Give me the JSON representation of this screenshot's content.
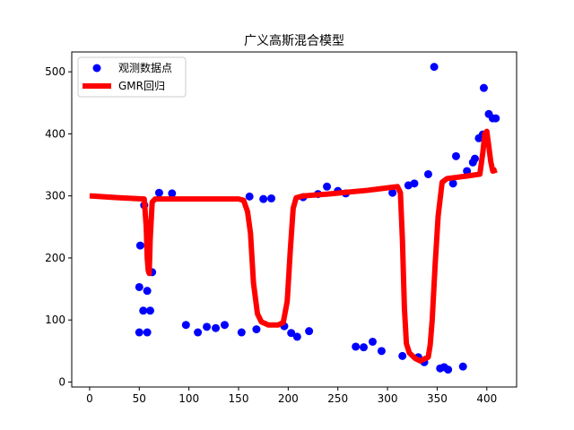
{
  "chart_data": {
    "type": "scatter",
    "title": "广义高斯混合模型",
    "xlabel": "",
    "ylabel": "",
    "xlim": [
      -18,
      430
    ],
    "ylim": [
      -8,
      532
    ],
    "xticks": [
      0,
      50,
      100,
      150,
      200,
      250,
      300,
      350,
      400
    ],
    "yticks": [
      0,
      100,
      200,
      300,
      400,
      500
    ],
    "grid": false,
    "legend_position": "upper-left",
    "colors": {
      "scatter": "#0000ff",
      "regression": "#ff0000"
    },
    "series": [
      {
        "name": "观测数据点",
        "kind": "scatter",
        "points": [
          [
            50,
            80
          ],
          [
            50,
            153
          ],
          [
            51,
            220
          ],
          [
            54,
            115
          ],
          [
            55,
            285
          ],
          [
            58,
            80
          ],
          [
            58,
            147
          ],
          [
            59,
            218
          ],
          [
            61,
            115
          ],
          [
            63,
            177
          ],
          [
            70,
            305
          ],
          [
            83,
            304
          ],
          [
            97,
            92
          ],
          [
            109,
            80
          ],
          [
            118,
            89
          ],
          [
            127,
            87
          ],
          [
            136,
            92
          ],
          [
            153,
            80
          ],
          [
            161,
            299
          ],
          [
            168,
            85
          ],
          [
            175,
            295
          ],
          [
            183,
            296
          ],
          [
            196,
            90
          ],
          [
            203,
            79
          ],
          [
            209,
            73
          ],
          [
            215,
            298
          ],
          [
            221,
            82
          ],
          [
            230,
            303
          ],
          [
            239,
            315
          ],
          [
            250,
            308
          ],
          [
            258,
            304
          ],
          [
            268,
            57
          ],
          [
            276,
            56
          ],
          [
            285,
            65
          ],
          [
            294,
            50
          ],
          [
            305,
            305
          ],
          [
            315,
            42
          ],
          [
            321,
            317
          ],
          [
            327,
            320
          ],
          [
            331,
            40
          ],
          [
            337,
            32
          ],
          [
            341,
            335
          ],
          [
            347,
            508
          ],
          [
            353,
            22
          ],
          [
            357,
            24
          ],
          [
            361,
            20
          ],
          [
            366,
            320
          ],
          [
            369,
            364
          ],
          [
            376,
            25
          ],
          [
            380,
            340
          ],
          [
            386,
            354
          ],
          [
            388,
            360
          ],
          [
            392,
            393
          ],
          [
            396,
            399
          ],
          [
            397,
            474
          ],
          [
            402,
            432
          ],
          [
            406,
            425
          ],
          [
            409,
            425
          ]
        ]
      },
      {
        "name": "GMR回归",
        "kind": "line",
        "points": [
          [
            0,
            300
          ],
          [
            30,
            297
          ],
          [
            55,
            295
          ],
          [
            57,
            250
          ],
          [
            58,
            200
          ],
          [
            59,
            180
          ],
          [
            60,
            175
          ],
          [
            61,
            230
          ],
          [
            63,
            290
          ],
          [
            66,
            295
          ],
          [
            80,
            295
          ],
          [
            120,
            295
          ],
          [
            150,
            295
          ],
          [
            155,
            293
          ],
          [
            159,
            275
          ],
          [
            162,
            240
          ],
          [
            165,
            160
          ],
          [
            169,
            110
          ],
          [
            173,
            97
          ],
          [
            180,
            92
          ],
          [
            190,
            92
          ],
          [
            195,
            96
          ],
          [
            199,
            130
          ],
          [
            202,
            210
          ],
          [
            205,
            280
          ],
          [
            208,
            297
          ],
          [
            215,
            300
          ],
          [
            240,
            303
          ],
          [
            280,
            309
          ],
          [
            305,
            314
          ],
          [
            310,
            315
          ],
          [
            313,
            305
          ],
          [
            315,
            230
          ],
          [
            317,
            120
          ],
          [
            319,
            62
          ],
          [
            322,
            47
          ],
          [
            328,
            38
          ],
          [
            333,
            34
          ],
          [
            338,
            38
          ],
          [
            341,
            40
          ],
          [
            343,
            60
          ],
          [
            345,
            100
          ],
          [
            348,
            190
          ],
          [
            351,
            268
          ],
          [
            355,
            322
          ],
          [
            360,
            328
          ],
          [
            380,
            332
          ],
          [
            393,
            335
          ],
          [
            396,
            370
          ],
          [
            398,
            400
          ],
          [
            400,
            404
          ],
          [
            402,
            380
          ],
          [
            404,
            355
          ],
          [
            406,
            340
          ],
          [
            410,
            342
          ]
        ]
      }
    ]
  }
}
